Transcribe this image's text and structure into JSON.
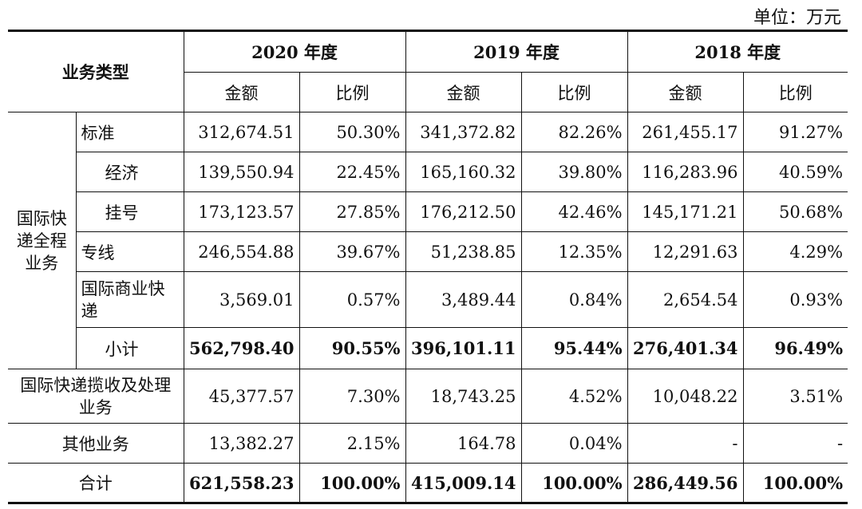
{
  "unit_label": "单位：万元",
  "header": {
    "business_type": "业务类型",
    "years": [
      "2020 年度",
      "2019 年度",
      "2018 年度"
    ],
    "amount": "金额",
    "ratio": "比例"
  },
  "group_label": "国际快递全程业务",
  "group_rows": [
    {
      "label": "标准",
      "values": [
        "312,674.51",
        "50.30%",
        "341,372.82",
        "82.26%",
        "261,455.17",
        "91.27%"
      ]
    },
    {
      "label": "经济",
      "values": [
        "139,550.94",
        "22.45%",
        "165,160.32",
        "39.80%",
        "116,283.96",
        "40.59%"
      ]
    },
    {
      "label": "挂号",
      "values": [
        "173,123.57",
        "27.85%",
        "176,212.50",
        "42.46%",
        "145,171.21",
        "50.68%"
      ]
    },
    {
      "label": "专线",
      "values": [
        "246,554.88",
        "39.67%",
        "51,238.85",
        "12.35%",
        "12,291.63",
        "4.29%"
      ]
    },
    {
      "label": "国际商业快递",
      "values": [
        "3,569.01",
        "0.57%",
        "3,489.44",
        "0.84%",
        "2,654.54",
        "0.93%"
      ]
    },
    {
      "label": "小计",
      "values": [
        "562,798.40",
        "90.55%",
        "396,101.11",
        "95.44%",
        "276,401.34",
        "96.49%"
      ]
    }
  ],
  "rows": [
    {
      "label": "国际快递揽收及处理业务",
      "values": [
        "45,377.57",
        "7.30%",
        "18,743.25",
        "4.52%",
        "10,048.22",
        "3.51%"
      ]
    },
    {
      "label": "其他业务",
      "values": [
        "13,382.27",
        "2.15%",
        "164.78",
        "0.04%",
        "-",
        "-"
      ]
    },
    {
      "label": "合计",
      "values": [
        "621,558.23",
        "100.00%",
        "415,009.14",
        "100.00%",
        "286,449.56",
        "100.00%"
      ]
    }
  ]
}
